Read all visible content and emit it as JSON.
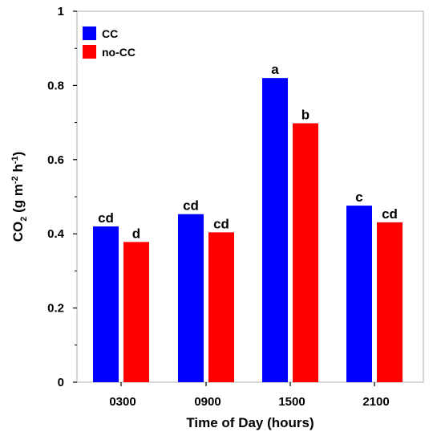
{
  "chart_data": {
    "type": "bar",
    "categories": [
      "0300",
      "0900",
      "1500",
      "2100"
    ],
    "series": [
      {
        "name": "CC",
        "color": "#0000ff",
        "values": [
          0.42,
          0.453,
          0.82,
          0.476
        ],
        "labels": [
          "cd",
          "cd",
          "a",
          "c"
        ]
      },
      {
        "name": "no-CC",
        "color": "#ff0000",
        "values": [
          0.378,
          0.404,
          0.698,
          0.431
        ],
        "labels": [
          "d",
          "cd",
          "b",
          "cd"
        ]
      }
    ],
    "xlabel": "Time of Day (hours)",
    "ylabel": {
      "main": "CO",
      "sub": "2",
      "unit_pre": " (g m",
      "exp1": "-2",
      "unit_mid": " h",
      "exp2": "-1",
      "unit_post": ")"
    },
    "ylim": [
      0,
      1
    ],
    "yticks": [
      0,
      0.2,
      0.4,
      0.6,
      0.8,
      1
    ],
    "ytick_labels": [
      "0",
      "0.2",
      "0.4",
      "0.6",
      "0.8",
      "1"
    ],
    "legend_position": "top-left",
    "grid": false
  }
}
